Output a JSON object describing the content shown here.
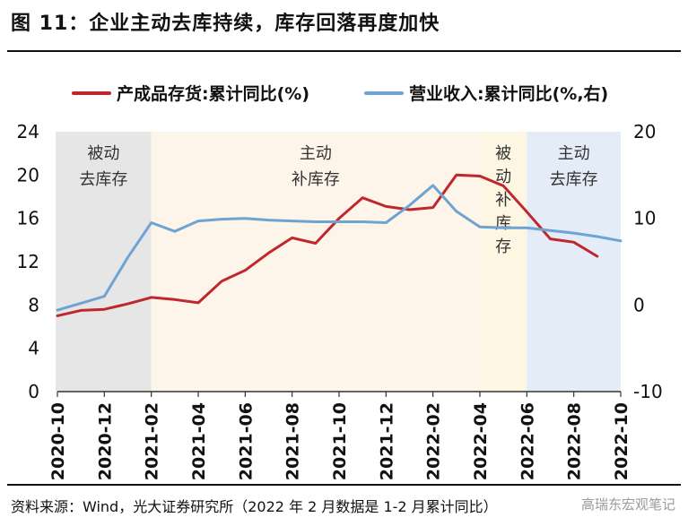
{
  "title": "图 11：企业主动去库持续，库存回落再度加快",
  "source": "资料来源：Wind，光大证券研究所（2022 年 2 月数据是 1-2 月累计同比）",
  "watermark": "高瑞东宏观笔记",
  "chart_data": {
    "type": "line",
    "x": [
      "2020-10",
      "2020-11",
      "2020-12",
      "2021-01",
      "2021-02",
      "2021-03",
      "2021-04",
      "2021-05",
      "2021-06",
      "2021-07",
      "2021-08",
      "2021-09",
      "2021-10",
      "2021-11",
      "2021-12",
      "2022-01",
      "2022-02",
      "2022-03",
      "2022-04",
      "2022-05",
      "2022-06",
      "2022-07",
      "2022-08",
      "2022-09",
      "2022-10"
    ],
    "x_tick_labels": [
      "2020-10",
      "2020-12",
      "2021-02",
      "2021-04",
      "2021-06",
      "2021-08",
      "2021-10",
      "2021-12",
      "2022-02",
      "2022-04",
      "2022-06",
      "2022-08",
      "2022-10"
    ],
    "y_left": {
      "ticks": [
        "0",
        "4",
        "8",
        "12",
        "16",
        "20",
        "24"
      ],
      "range": [
        0,
        24
      ]
    },
    "y_right": {
      "ticks": [
        "-10",
        "0",
        "10",
        "20"
      ],
      "range": [
        -10,
        20
      ]
    },
    "series": [
      {
        "name": "产成品存货:累计同比(%)",
        "axis": "left",
        "color": "#c0272d",
        "values": [
          7.0,
          7.5,
          7.6,
          8.1,
          8.7,
          8.5,
          8.2,
          10.2,
          11.2,
          12.8,
          14.2,
          13.7,
          16.0,
          17.9,
          17.1,
          16.8,
          17.0,
          20.0,
          19.9,
          19.0,
          16.6,
          14.1,
          13.8,
          12.5,
          null
        ],
        "values_note_index": "values aligned to x; last point near 2022-10 boundary"
      },
      {
        "name": "营业收入:累计同比(%,右)",
        "axis": "right",
        "color": "#6fa3d2",
        "values": [
          -0.6,
          0.2,
          1.0,
          5.5,
          9.5,
          8.5,
          9.7,
          9.9,
          10.0,
          9.8,
          9.7,
          9.6,
          9.6,
          9.6,
          9.5,
          11.5,
          13.8,
          10.8,
          9.0,
          8.9,
          8.9,
          8.6,
          8.3,
          7.9,
          7.4
        ]
      }
    ],
    "regions": [
      {
        "label": [
          "被动",
          "去库存"
        ],
        "from": "2020-10",
        "to": "2021-02",
        "color": "#e6e6e6"
      },
      {
        "label": [
          "主动",
          "补库存"
        ],
        "from": "2021-02",
        "to": "2022-04",
        "color": "#fdf4ea"
      },
      {
        "label": [
          "被",
          "动",
          "补",
          "库",
          "存"
        ],
        "from": "2022-04",
        "to": "2022-06",
        "color": "#fdf6e3"
      },
      {
        "label": [
          "主动",
          "去库存"
        ],
        "from": "2022-06",
        "to": "2022-10",
        "color": "#e4edf7"
      }
    ]
  }
}
